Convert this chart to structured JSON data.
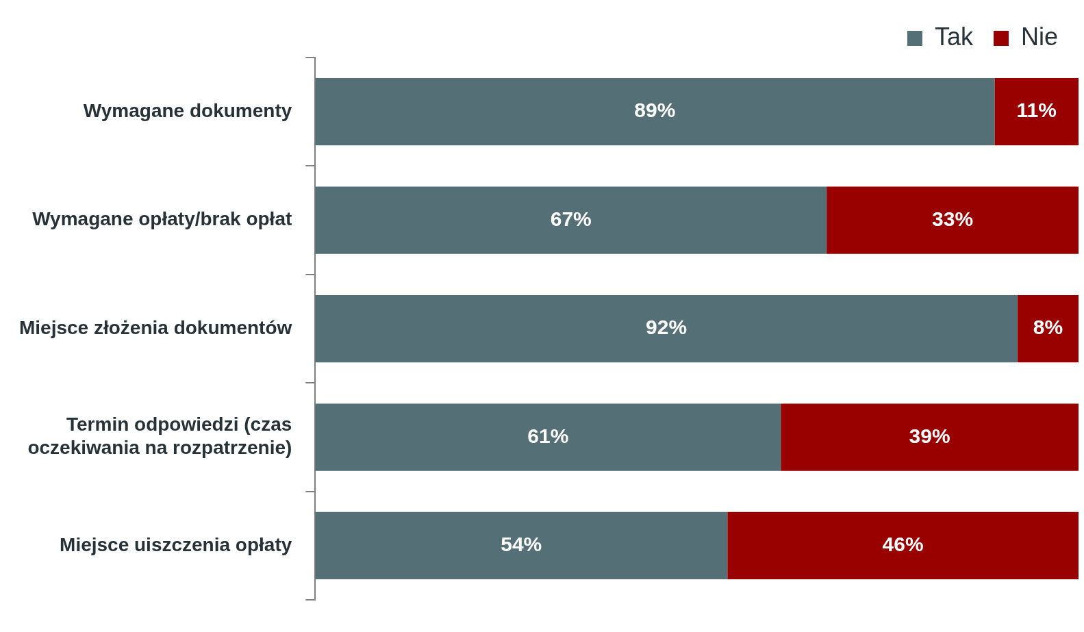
{
  "chart_data": {
    "type": "bar",
    "orientation": "horizontal",
    "stacked": true,
    "categories": [
      "Wymagane dokumenty",
      "Wymagane opłaty/brak opłat",
      "Miejsce złożenia dokumentów",
      "Termin odpowiedzi (czas oczekiwania na rozpatrzenie)",
      "Miejsce uiszczenia opłaty"
    ],
    "series": [
      {
        "name": "Tak",
        "color": "#546f75",
        "values": [
          89,
          67,
          92,
          61,
          54
        ],
        "value_labels": [
          "89%",
          "67%",
          "92%",
          "61%",
          "54%"
        ]
      },
      {
        "name": "Nie",
        "color": "#990000",
        "values": [
          11,
          33,
          8,
          39,
          46
        ],
        "value_labels": [
          "11%",
          "33%",
          "8%",
          "39%",
          "46%"
        ]
      }
    ],
    "xlim": [
      0,
      100
    ],
    "tick_labels": "y",
    "legend": "top"
  }
}
